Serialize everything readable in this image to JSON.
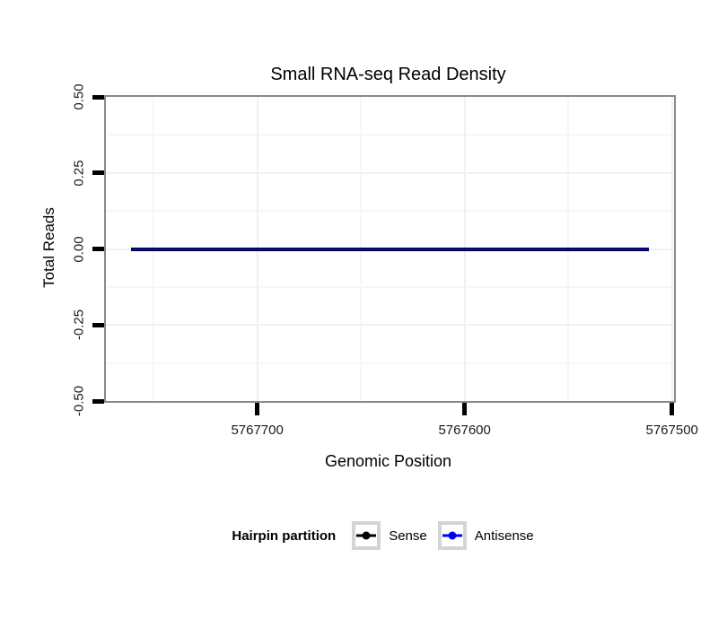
{
  "chart_data": {
    "type": "line",
    "title": "Small RNA-seq Read Density",
    "xlabel": "Genomic Position",
    "ylabel": "Total Reads",
    "x_axis": {
      "reversed": true,
      "lim": [
        5767773,
        5767499
      ],
      "ticks": [
        5767700,
        5767600,
        5767500
      ],
      "tick_labels": [
        "5767700",
        "5767600",
        "5767500"
      ],
      "minor_gridlines": [
        5767750,
        5767650,
        5767550
      ]
    },
    "y_axis": {
      "lim": [
        -0.5,
        0.5
      ],
      "ticks": [
        0.5,
        0.25,
        0,
        -0.25,
        -0.5
      ],
      "tick_labels": [
        "0.50",
        "0.25",
        "0.00",
        "-0.25",
        "-0.50"
      ],
      "minor_gridlines": [
        0.375,
        0.125,
        -0.125,
        -0.375
      ]
    },
    "series": [
      {
        "name": "Sense",
        "color": "#000000",
        "y": 0,
        "x_start": 5767761,
        "x_end": 5767511,
        "stroke_px": 4
      },
      {
        "name": "Antisense",
        "color": "#0000EE",
        "y": 0,
        "x_start": 5767761,
        "x_end": 5767511,
        "stroke_px": 2
      }
    ],
    "legend": {
      "title": "Hairpin partition",
      "position": "bottom"
    },
    "panel": {
      "border_color": "#8a8a8a",
      "bg": "#ffffff",
      "grid_major_color": "#f1f1f1",
      "grid_minor_color": "#f6f6f6",
      "tick_color": "#000000"
    }
  }
}
